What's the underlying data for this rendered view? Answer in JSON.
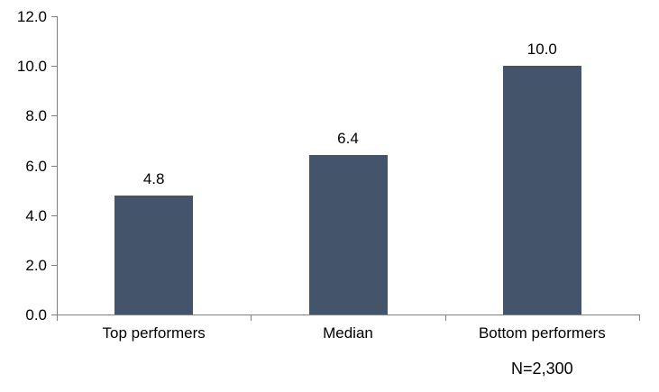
{
  "chart_data": {
    "type": "bar",
    "title": "",
    "xlabel": "",
    "ylabel": "",
    "categories": [
      "Top performers",
      "Median",
      "Bottom performers"
    ],
    "values": [
      4.8,
      6.4,
      10.0
    ],
    "value_labels": [
      "4.8",
      "6.4",
      "10.0"
    ],
    "y_ticks": [
      0.0,
      2.0,
      4.0,
      6.0,
      8.0,
      10.0,
      12.0
    ],
    "y_tick_labels": [
      "0.0",
      "2.0",
      "4.0",
      "6.0",
      "8.0",
      "10.0",
      "12.0"
    ],
    "ylim": [
      0,
      12
    ],
    "grid": false,
    "legend_position": "none",
    "annotation": "N=2,300",
    "annotation_anchor_category": "Bottom performers",
    "bar_color": "#44546A",
    "axis_color": "#808080",
    "text_color": "#000000"
  }
}
